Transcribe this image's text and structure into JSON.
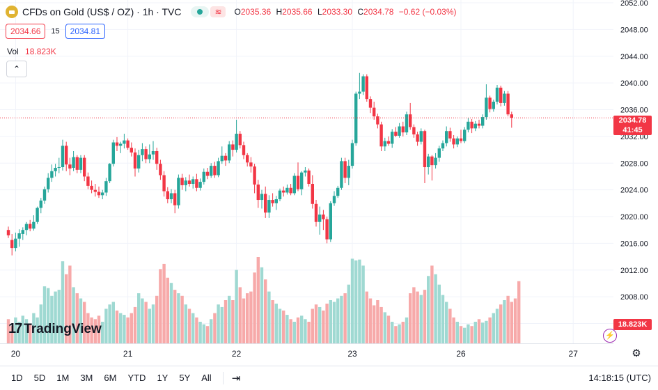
{
  "header": {
    "title": "CFDs on Gold (US$ / OZ) · 1h · TVC",
    "ohlc": [
      {
        "k": "O",
        "v": "2035.36"
      },
      {
        "k": "H",
        "v": "2035.66"
      },
      {
        "k": "L",
        "v": "2033.30"
      },
      {
        "k": "C",
        "v": "2034.78"
      }
    ],
    "change": "−0.62 (−0.03%)",
    "bid": "2034.66",
    "spread": "15",
    "ask": "2034.81",
    "vol_label": "Vol",
    "vol_value": "18.823K"
  },
  "price_tag": {
    "price": "2034.78",
    "countdown": "41:45"
  },
  "volume_tag": "18.823K",
  "branding": {
    "logo_text": "TradingView"
  },
  "bottom_bar": {
    "ranges": [
      "1D",
      "5D",
      "1M",
      "3M",
      "6M",
      "YTD",
      "1Y",
      "5Y",
      "All"
    ],
    "clock": "14:18:15 (UTC)"
  },
  "colors": {
    "up": "#26a69a",
    "down": "#f23645",
    "up_volume": "#9fd9d2",
    "down_volume": "#f7a9a9"
  },
  "chart_data": {
    "type": "candlestick",
    "y_ticks": [
      "2052.00",
      "2048.00",
      "2044.00",
      "2040.00",
      "2036.00",
      "2032.00",
      "2028.00",
      "2024.00",
      "2020.00",
      "2016.00",
      "2012.00",
      "2008.00",
      "2004.00"
    ],
    "ylim": [
      2002.7,
      2052.0
    ],
    "x_ticks": [
      {
        "label": "20",
        "index": 2
      },
      {
        "label": "21",
        "index": 33
      },
      {
        "label": "22",
        "index": 63
      },
      {
        "label": "23",
        "index": 95
      },
      {
        "label": "26",
        "index": 125
      },
      {
        "label": "27",
        "index": 156
      }
    ],
    "last_price": 2034.78,
    "candles": [
      [
        2018,
        2018.5,
        2016.8,
        2017.2
      ],
      [
        2016.5,
        2017.4,
        2014.2,
        2015.3
      ],
      [
        2015.3,
        2017.6,
        2014.8,
        2016.7
      ],
      [
        2016.7,
        2018.1,
        2015.5,
        2017.5
      ],
      [
        2017.4,
        2018.4,
        2016.5,
        2018.0
      ],
      [
        2018.0,
        2019.2,
        2017.2,
        2018.9
      ],
      [
        2018.9,
        2019.5,
        2017.8,
        2018.2
      ],
      [
        2018.2,
        2020.2,
        2017.9,
        2019.2
      ],
      [
        2019.2,
        2021.5,
        2018.9,
        2021.3
      ],
      [
        2021.3,
        2022.8,
        2020.5,
        2022.4
      ],
      [
        2022.4,
        2024.5,
        2021.9,
        2024.1
      ],
      [
        2024.1,
        2026.5,
        2023.6,
        2025.8
      ],
      [
        2025.8,
        2027.8,
        2025.2,
        2026.8
      ],
      [
        2026.8,
        2027.9,
        2026.0,
        2027.3
      ],
      [
        2027.3,
        2028.8,
        2026.5,
        2027.4
      ],
      [
        2027.4,
        2031.5,
        2026.9,
        2030.6
      ],
      [
        2030.6,
        2031.2,
        2026.8,
        2027.8
      ],
      [
        2027.8,
        2028.8,
        2026.2,
        2027.2
      ],
      [
        2027.3,
        2029.8,
        2026.8,
        2028.9
      ],
      [
        2028.9,
        2029.2,
        2026.5,
        2027.0
      ],
      [
        2027.0,
        2029.2,
        2026.5,
        2028.8
      ],
      [
        2028.8,
        2029.2,
        2025.3,
        2026.0
      ],
      [
        2026.0,
        2026.6,
        2024.1,
        2024.6
      ],
      [
        2024.6,
        2025.4,
        2023.5,
        2024.0
      ],
      [
        2024.0,
        2024.9,
        2023.0,
        2023.7
      ],
      [
        2023.7,
        2024.5,
        2022.8,
        2023.2
      ],
      [
        2023.2,
        2024.0,
        2022.6,
        2023.6
      ],
      [
        2023.6,
        2025.8,
        2023.1,
        2025.3
      ],
      [
        2025.3,
        2028.0,
        2025.0,
        2027.9
      ],
      [
        2027.9,
        2031.5,
        2027.5,
        2031.1
      ],
      [
        2031.1,
        2031.9,
        2029.8,
        2030.6
      ],
      [
        2030.6,
        2031.2,
        2029.5,
        2030.9
      ],
      [
        2030.9,
        2032.4,
        2030.2,
        2031.4
      ],
      [
        2031.4,
        2031.7,
        2030.0,
        2030.3
      ],
      [
        2030.3,
        2031.1,
        2029.0,
        2029.6
      ],
      [
        2029.6,
        2030.2,
        2026.0,
        2027.2
      ],
      [
        2027.2,
        2030.0,
        2026.6,
        2029.2
      ],
      [
        2029.2,
        2031.0,
        2028.3,
        2030.1
      ],
      [
        2030.1,
        2030.5,
        2028.0,
        2028.6
      ],
      [
        2028.6,
        2030.8,
        2028.0,
        2029.3
      ],
      [
        2029.3,
        2031.3,
        2028.5,
        2029.8
      ],
      [
        2029.8,
        2030.3,
        2027.0,
        2027.9
      ],
      [
        2027.9,
        2028.5,
        2025.5,
        2026.2
      ],
      [
        2026.2,
        2026.8,
        2023.0,
        2023.8
      ],
      [
        2023.8,
        2024.4,
        2022.0,
        2022.6
      ],
      [
        2022.6,
        2024.1,
        2022.0,
        2023.5
      ],
      [
        2023.5,
        2024.0,
        2020.5,
        2021.7
      ],
      [
        2021.7,
        2026.3,
        2021.2,
        2025.8
      ],
      [
        2025.8,
        2026.4,
        2024.0,
        2024.7
      ],
      [
        2024.7,
        2025.9,
        2023.8,
        2025.4
      ],
      [
        2025.4,
        2026.3,
        2024.5,
        2024.9
      ],
      [
        2024.9,
        2026.0,
        2024.2,
        2025.6
      ],
      [
        2025.6,
        2026.4,
        2023.8,
        2024.3
      ],
      [
        2024.3,
        2025.7,
        2023.9,
        2025.2
      ],
      [
        2025.2,
        2027.2,
        2024.8,
        2026.7
      ],
      [
        2026.7,
        2027.3,
        2025.6,
        2026.1
      ],
      [
        2026.1,
        2028.0,
        2025.8,
        2027.6
      ],
      [
        2027.6,
        2028.2,
        2025.8,
        2026.2
      ],
      [
        2026.2,
        2028.8,
        2025.9,
        2028.3
      ],
      [
        2028.3,
        2030.5,
        2027.9,
        2029.1
      ],
      [
        2029.1,
        2029.5,
        2027.6,
        2028.4
      ],
      [
        2028.4,
        2031.3,
        2028.0,
        2030.8
      ],
      [
        2030.8,
        2031.4,
        2029.0,
        2030.0
      ],
      [
        2030.0,
        2034.5,
        2029.6,
        2032.4
      ],
      [
        2032.4,
        2032.8,
        2030.2,
        2030.7
      ],
      [
        2030.7,
        2031.2,
        2028.6,
        2029.2
      ],
      [
        2029.2,
        2029.5,
        2027.5,
        2028.1
      ],
      [
        2028.1,
        2028.9,
        2026.6,
        2027.5
      ],
      [
        2027.5,
        2027.9,
        2023.5,
        2024.8
      ],
      [
        2024.8,
        2025.5,
        2021.3,
        2022.5
      ],
      [
        2022.5,
        2024.0,
        2021.2,
        2023.4
      ],
      [
        2023.4,
        2024.5,
        2019.8,
        2020.6
      ],
      [
        2020.6,
        2023.2,
        2019.8,
        2022.5
      ],
      [
        2022.5,
        2023.5,
        2021.5,
        2022.0
      ],
      [
        2022.0,
        2023.1,
        2021.0,
        2022.6
      ],
      [
        2022.6,
        2024.2,
        2022.3,
        2023.9
      ],
      [
        2023.9,
        2024.5,
        2023.0,
        2023.6
      ],
      [
        2023.6,
        2024.8,
        2023.3,
        2024.3
      ],
      [
        2024.3,
        2024.9,
        2023.2,
        2023.5
      ],
      [
        2023.5,
        2026.5,
        2023.2,
        2026.1
      ],
      [
        2026.1,
        2028.1,
        2023.8,
        2024.1
      ],
      [
        2024.1,
        2026.8,
        2023.2,
        2026.6
      ],
      [
        2026.6,
        2027.4,
        2026.0,
        2026.9
      ],
      [
        2026.9,
        2027.2,
        2024.5,
        2024.9
      ],
      [
        2024.9,
        2026.2,
        2021.2,
        2021.9
      ],
      [
        2021.9,
        2022.5,
        2018.5,
        2019.2
      ],
      [
        2019.2,
        2021.5,
        2017.3,
        2020.3
      ],
      [
        2020.3,
        2021.0,
        2018.0,
        2019.6
      ],
      [
        2019.6,
        2020.0,
        2016.0,
        2016.6
      ],
      [
        2016.6,
        2022.3,
        2016.2,
        2022.0
      ],
      [
        2022.0,
        2023.8,
        2021.6,
        2023.1
      ],
      [
        2023.1,
        2024.6,
        2022.8,
        2024.3
      ],
      [
        2024.3,
        2028.8,
        2024.0,
        2028.3
      ],
      [
        2028.3,
        2028.8,
        2025.0,
        2025.8
      ],
      [
        2025.8,
        2028.5,
        2024.7,
        2027.6
      ],
      [
        2027.6,
        2031.5,
        2027.2,
        2031.0
      ],
      [
        2031.0,
        2038.7,
        2030.6,
        2038.4
      ],
      [
        2038.4,
        2041.5,
        2037.6,
        2038.7
      ],
      [
        2038.7,
        2041.3,
        2038.2,
        2041.0
      ],
      [
        2041.0,
        2041.3,
        2037.2,
        2037.6
      ],
      [
        2037.6,
        2038.0,
        2035.5,
        2036.3
      ],
      [
        2036.3,
        2037.2,
        2034.5,
        2035.0
      ],
      [
        2035.0,
        2035.4,
        2033.2,
        2033.8
      ],
      [
        2033.8,
        2034.2,
        2029.8,
        2030.5
      ],
      [
        2030.5,
        2031.8,
        2029.8,
        2031.3
      ],
      [
        2031.3,
        2032.0,
        2030.6,
        2030.9
      ],
      [
        2030.9,
        2033.1,
        2030.3,
        2032.7
      ],
      [
        2032.7,
        2033.4,
        2031.9,
        2032.1
      ],
      [
        2032.1,
        2034.0,
        2031.8,
        2033.5
      ],
      [
        2033.5,
        2034.2,
        2032.0,
        2032.6
      ],
      [
        2032.6,
        2035.7,
        2032.2,
        2035.3
      ],
      [
        2035.3,
        2037.0,
        2033.0,
        2033.4
      ],
      [
        2033.4,
        2033.8,
        2031.8,
        2032.3
      ],
      [
        2032.3,
        2032.7,
        2030.6,
        2031.2
      ],
      [
        2031.2,
        2033.2,
        2030.8,
        2032.8
      ],
      [
        2032.8,
        2033.0,
        2025.0,
        2027.4
      ],
      [
        2027.4,
        2029.4,
        2026.3,
        2029.0
      ],
      [
        2029.0,
        2029.2,
        2025.4,
        2027.7
      ],
      [
        2027.7,
        2029.5,
        2027.2,
        2028.8
      ],
      [
        2028.8,
        2030.6,
        2028.2,
        2030.2
      ],
      [
        2030.2,
        2031.4,
        2029.8,
        2031.0
      ],
      [
        2031.0,
        2033.5,
        2030.5,
        2032.8
      ],
      [
        2032.8,
        2033.3,
        2031.2,
        2031.7
      ],
      [
        2031.7,
        2032.2,
        2030.2,
        2030.8
      ],
      [
        2030.8,
        2032.0,
        2030.4,
        2031.7
      ],
      [
        2031.7,
        2033.0,
        2031.0,
        2031.3
      ],
      [
        2031.3,
        2033.4,
        2031.0,
        2033.0
      ],
      [
        2033.0,
        2034.8,
        2032.6,
        2034.2
      ],
      [
        2034.2,
        2034.6,
        2032.5,
        2033.2
      ],
      [
        2033.2,
        2034.3,
        2032.8,
        2033.9
      ],
      [
        2033.9,
        2034.5,
        2033.2,
        2033.6
      ],
      [
        2033.6,
        2035.3,
        2033.2,
        2034.9
      ],
      [
        2034.9,
        2039.8,
        2034.5,
        2037.8
      ],
      [
        2037.8,
        2038.1,
        2035.6,
        2036.1
      ],
      [
        2036.1,
        2037.5,
        2035.7,
        2037.2
      ],
      [
        2037.2,
        2039.7,
        2036.8,
        2039.3
      ],
      [
        2039.3,
        2039.6,
        2036.5,
        2037.0
      ],
      [
        2037.0,
        2038.8,
        2036.6,
        2038.4
      ],
      [
        2038.4,
        2038.8,
        2035.0,
        2035.3
      ],
      [
        2035.3,
        2035.7,
        2033.3,
        2034.8
      ]
    ],
    "volumes_relative": [
      0.28,
      0.2,
      0.3,
      0.25,
      0.32,
      0.28,
      0.22,
      0.35,
      0.3,
      0.45,
      0.66,
      0.64,
      0.55,
      0.6,
      0.62,
      0.95,
      0.8,
      0.9,
      0.65,
      0.58,
      0.52,
      0.48,
      0.35,
      0.3,
      0.28,
      0.32,
      0.25,
      0.4,
      0.45,
      0.48,
      0.38,
      0.35,
      0.33,
      0.3,
      0.35,
      0.42,
      0.58,
      0.52,
      0.48,
      0.4,
      0.45,
      0.55,
      0.86,
      0.92,
      0.76,
      0.7,
      0.62,
      0.58,
      0.55,
      0.45,
      0.4,
      0.35,
      0.3,
      0.25,
      0.22,
      0.2,
      0.28,
      0.35,
      0.45,
      0.42,
      0.5,
      0.55,
      0.5,
      0.85,
      0.65,
      0.52,
      0.58,
      0.6,
      0.82,
      1.0,
      0.88,
      0.74,
      0.6,
      0.5,
      0.46,
      0.4,
      0.38,
      0.33,
      0.28,
      0.25,
      0.3,
      0.32,
      0.28,
      0.25,
      0.4,
      0.45,
      0.42,
      0.38,
      0.46,
      0.5,
      0.48,
      0.52,
      0.55,
      0.58,
      0.68,
      0.98,
      0.96,
      0.97,
      0.9,
      0.6,
      0.52,
      0.44,
      0.5,
      0.42,
      0.36,
      0.32,
      0.25,
      0.2,
      0.22,
      0.25,
      0.3,
      0.58,
      0.65,
      0.6,
      0.56,
      0.62,
      0.78,
      0.9,
      0.8,
      0.68,
      0.56,
      0.48,
      0.4,
      0.3,
      0.25,
      0.2,
      0.18,
      0.22,
      0.2,
      0.25,
      0.28,
      0.24,
      0.26,
      0.3,
      0.35,
      0.4,
      0.45,
      0.5,
      0.55,
      0.48,
      0.52,
      0.72
    ]
  }
}
